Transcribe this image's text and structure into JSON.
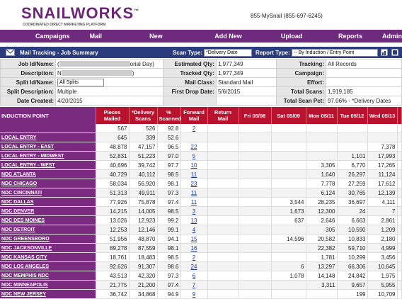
{
  "header": {
    "logo": "SNAILWORKS",
    "trademark": "™",
    "tagline": "COORDINATED DIRECT MARKETING PLATFORM",
    "phone": "855-MySnail (855-697-6245)"
  },
  "nav": [
    "Campaigns",
    "Mail Tracking",
    "New Campaign",
    "Add New Client",
    "Upload Files",
    "Reports",
    "Admin"
  ],
  "panel": {
    "title": "Mail Tracking - Job Summary",
    "scan_type_label": "Scan Type:",
    "scan_type_value": "*Delivery Date",
    "report_type_label": "Report Type:",
    "report_type_value": "-- By Induction / Entry Point"
  },
  "summary": [
    [
      {
        "label": "Job Id/Name:",
        "value": "(",
        "value_tail": "orial Day)"
      },
      {
        "label": "Estimated Qty:",
        "value": "1,977,349"
      },
      {
        "label": "Tracking:",
        "value": "All Records"
      }
    ],
    [
      {
        "label": "Description:",
        "value": "N",
        "value_tail": ")"
      },
      {
        "label": "Tracked Qty:",
        "value": "1,977,349"
      },
      {
        "label": "Campaign:",
        "value": null
      }
    ],
    [
      {
        "label": "Split Id/Name:",
        "select": "All Splits"
      },
      {
        "label": "Mail Class:",
        "value": "Standard Mail"
      },
      {
        "label": "Effort:",
        "value": null
      }
    ],
    [
      {
        "label": "Split Description:",
        "value": "Multiple"
      },
      {
        "label": "First Drop Date:",
        "value": "5/6/2015"
      },
      {
        "label": "Total Scans:",
        "value": "1,919,185"
      }
    ],
    [
      {
        "label": "Date Created:",
        "value": "4/20/2015"
      },
      {
        "label": "",
        "value": null
      },
      {
        "label": "Total Scan Pct:",
        "value": "97.06% - *Delivery Dates"
      }
    ]
  ],
  "table": {
    "columns": [
      "INDUCTION POINT",
      "Pieces Mailed",
      "*Delivery Scans",
      "% Scanned",
      "Forward Mail",
      "Return Mail",
      "Fri 05/08",
      "Sat 05/09",
      "Mon 05/11",
      "Tue 05/12",
      "Wed 05/13"
    ],
    "rows": [
      [
        null,
        "567",
        "526",
        "92.8",
        "2",
        null,
        null,
        null,
        null,
        null,
        null
      ],
      [
        "LOCAL ENTRY",
        "645",
        "339",
        "52.6",
        null,
        null,
        null,
        null,
        null,
        null,
        null
      ],
      [
        "LOCAL ENTRY - EAST",
        "48,878",
        "47,157",
        "96.5",
        "22",
        null,
        null,
        null,
        null,
        null,
        "7,378"
      ],
      [
        "LOCAL ENTRY - MIDWEST",
        "52,831",
        "51,223",
        "97.0",
        "5",
        null,
        null,
        null,
        null,
        "1,101",
        "17,993"
      ],
      [
        "LOCAL ENTRY - WEST",
        "40,696",
        "39,742",
        "97.7",
        "10",
        null,
        null,
        null,
        "3,305",
        "6,770",
        "17,265"
      ],
      [
        "NDC ATLANTA",
        "40,729",
        "40,112",
        "98.5",
        "11",
        null,
        null,
        null,
        "1,640",
        "26,297",
        "11,124"
      ],
      [
        "NDC CHICAGO",
        "58,034",
        "56,920",
        "98.1",
        "23",
        null,
        null,
        null,
        "7,778",
        "27,259",
        "17,612"
      ],
      [
        "NDC CINCINNATI",
        "51,313",
        "49,911",
        "97.3",
        "11",
        null,
        null,
        null,
        "6,124",
        "30,765",
        "12,139"
      ],
      [
        "NDC DALLAS",
        "77,926",
        "75,878",
        "97.4",
        "11",
        null,
        null,
        "3,544",
        "28,235",
        "36,697",
        "4,111"
      ],
      [
        "NDC DENVER",
        "14,215",
        "14,005",
        "98.5",
        "3",
        null,
        null,
        "1,673",
        "12,300",
        "24",
        "7"
      ],
      [
        "NDC DES MOINES",
        "13,026",
        "12,923",
        "99.2",
        "13",
        null,
        null,
        "637",
        "2,646",
        "6,663",
        "2,861"
      ],
      [
        "NDC DETROIT",
        "12,253",
        "12,146",
        "99.1",
        "4",
        null,
        null,
        null,
        "305",
        "10,590",
        "1,209"
      ],
      [
        "NDC GREENSBORO",
        "51,956",
        "48,870",
        "94.1",
        "15",
        null,
        null,
        "14,596",
        "20,582",
        "10,833",
        "2,180"
      ],
      [
        "NDC JACKSONVILLE",
        "89,278",
        "87,559",
        "98.1",
        "16",
        null,
        null,
        null,
        "22,382",
        "59,710",
        "4,999"
      ],
      [
        "NDC KANSAS CITY",
        "18,761",
        "18,483",
        "98.5",
        "2",
        null,
        null,
        null,
        "1,781",
        "10,299",
        "3,456"
      ],
      [
        "NDC LOS ANGELES",
        "92,626",
        "91,307",
        "98.6",
        "24",
        null,
        null,
        "6",
        "13,297",
        "66,306",
        "10,645"
      ],
      [
        "NDC MEMPHIS NDC",
        "43,513",
        "42,320",
        "97.3",
        "6",
        null,
        null,
        "1,078",
        "14,148",
        "24,842",
        "1,975"
      ],
      [
        "NDC MINNEAPOLIS",
        "21,775",
        "21,200",
        "97.4",
        "7",
        null,
        null,
        null,
        "3,311",
        "9,657",
        "5,955"
      ],
      [
        "NDC NEW JERSEY",
        "36,742",
        "34,868",
        "94.9",
        "9",
        null,
        null,
        null,
        null,
        "199",
        "10,709"
      ]
    ]
  }
}
